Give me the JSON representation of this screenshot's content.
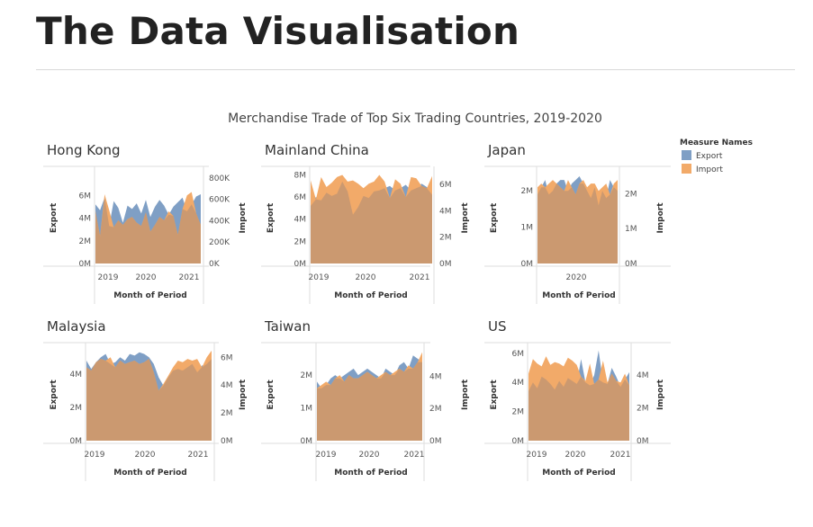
{
  "page": {
    "title": "The Data Visualisation"
  },
  "chart_title": "Merchandise Trade of Top Six Trading Countries, 2019-2020",
  "legend": {
    "title": "Measure Names",
    "items": [
      {
        "label": "Export",
        "color": "#7f9fc5"
      },
      {
        "label": "Import",
        "color": "#f2aa69"
      }
    ]
  },
  "colors": {
    "export": "#7f9fc5",
    "import": "#f2aa69",
    "overlap": "#cb9970"
  },
  "chart_data": [
    {
      "type": "area",
      "title": "Hong Kong",
      "xlabel": "Month of Period",
      "ylabel": "Export",
      "ylabel_right": "Import",
      "x_ticks": [
        "2019",
        "2020",
        "2021"
      ],
      "ylim": [
        0,
        8000000
      ],
      "y_ticks": [
        "0M",
        "2M",
        "4M",
        "6M"
      ],
      "ylim_right": [
        0,
        850000
      ],
      "y_ticks_right": [
        "0K",
        "200K",
        "400K",
        "600K",
        "800K"
      ],
      "series": [
        {
          "name": "Export",
          "axis": "left",
          "values": [
            5.2,
            4.7,
            5.8,
            3.3,
            5.5,
            4.9,
            3.6,
            5.1,
            4.8,
            5.3,
            4.4,
            5.6,
            4.1,
            5.0,
            5.6,
            5.1,
            4.3,
            5.0,
            5.4,
            5.8,
            4.6,
            5.2,
            5.9,
            6.1
          ]
        },
        {
          "name": "Import",
          "axis": "left",
          "values": [
            4.6,
            2.4,
            6.1,
            4.7,
            3.2,
            3.8,
            3.4,
            3.9,
            4.1,
            3.6,
            3.3,
            4.5,
            2.8,
            3.4,
            4.1,
            3.8,
            4.6,
            4.2,
            2.5,
            4.8,
            6.0,
            6.3,
            4.4,
            3.4
          ]
        }
      ]
    },
    {
      "type": "area",
      "title": "Mainland China",
      "xlabel": "Month of Period",
      "ylabel": "Export",
      "ylabel_right": "Import",
      "x_ticks": [
        "2019",
        "2020",
        "2021"
      ],
      "ylim": [
        0,
        8200000
      ],
      "y_ticks": [
        "0M",
        "2M",
        "4M",
        "6M",
        "8M"
      ],
      "ylim_right": [
        0,
        6900000
      ],
      "y_ticks_right": [
        "0M",
        "2M",
        "4M",
        "6M"
      ],
      "series": [
        {
          "name": "Export",
          "axis": "left",
          "values": [
            5.2,
            6.0,
            5.7,
            6.4,
            6.1,
            6.3,
            7.4,
            6.5,
            4.4,
            5.1,
            6.1,
            5.9,
            6.5,
            6.6,
            6.8,
            7.0,
            6.6,
            6.8,
            7.1,
            6.6,
            6.8,
            7.2,
            6.9,
            6.2
          ]
        },
        {
          "name": "Import",
          "axis": "left",
          "values": [
            7.5,
            5.8,
            7.8,
            6.9,
            7.3,
            7.8,
            8.0,
            7.4,
            7.5,
            7.2,
            6.8,
            7.2,
            7.4,
            8.0,
            7.4,
            5.9,
            7.6,
            7.2,
            6.0,
            7.8,
            7.7,
            7.0,
            6.8,
            7.9
          ]
        }
      ]
    },
    {
      "type": "area",
      "title": "Japan",
      "xlabel": "Month of Period",
      "ylabel": "Export",
      "ylabel_right": "Import",
      "x_ticks": [
        "2020"
      ],
      "ylim": [
        0,
        2500000
      ],
      "y_ticks": [
        "0M",
        "1M",
        "2M"
      ],
      "ylim_right": [
        0,
        2600000
      ],
      "y_ticks_right": [
        "0M",
        "1M",
        "2M"
      ],
      "series": [
        {
          "name": "Export",
          "axis": "left",
          "values": [
            1.9,
            2.1,
            2.3,
            1.9,
            2.0,
            2.2,
            2.3,
            2.3,
            2.0,
            2.2,
            2.3,
            2.4,
            2.2,
            2.0,
            1.8,
            2.1,
            1.6,
            2.0,
            1.8,
            2.3,
            2.1,
            2.0
          ]
        },
        {
          "name": "Import",
          "axis": "left",
          "values": [
            2.1,
            2.2,
            2.1,
            2.2,
            2.3,
            2.2,
            2.1,
            2.0,
            2.3,
            2.1,
            1.9,
            2.2,
            2.3,
            2.1,
            2.2,
            2.2,
            2.0,
            2.1,
            2.2,
            1.9,
            2.2,
            2.3
          ]
        }
      ]
    },
    {
      "type": "area",
      "title": "Malaysia",
      "xlabel": "Month of Period",
      "ylabel": "Export",
      "ylabel_right": "Import",
      "x_ticks": [
        "2019",
        "2020",
        "2021"
      ],
      "ylim": [
        0,
        5500000
      ],
      "y_ticks": [
        "0M",
        "2M",
        "4M"
      ],
      "ylim_right": [
        0,
        6600000
      ],
      "y_ticks_right": [
        "0M",
        "2M",
        "4M",
        "6M"
      ],
      "series": [
        {
          "name": "Export",
          "axis": "left",
          "values": [
            4.8,
            4.3,
            4.7,
            5.0,
            5.2,
            4.6,
            4.7,
            5.0,
            4.8,
            5.2,
            5.1,
            5.3,
            5.2,
            5.0,
            4.6,
            3.8,
            3.3,
            3.8,
            4.2,
            4.3,
            4.2,
            4.4,
            4.6,
            4.1,
            4.5,
            4.6,
            4.9
          ]
        },
        {
          "name": "Import",
          "axis": "left",
          "values": [
            4.4,
            4.2,
            4.7,
            4.9,
            4.8,
            5.0,
            4.4,
            4.8,
            4.6,
            4.7,
            4.8,
            4.6,
            4.7,
            4.9,
            4.1,
            3.0,
            3.4,
            3.9,
            4.4,
            4.8,
            4.7,
            4.9,
            4.8,
            4.9,
            4.4,
            5.0,
            5.4
          ]
        }
      ]
    },
    {
      "type": "area",
      "title": "Taiwan",
      "xlabel": "Month of Period",
      "ylabel": "Export",
      "ylabel_right": "Import",
      "x_ticks": [
        "2019",
        "2020",
        "2021"
      ],
      "ylim": [
        0,
        2800000
      ],
      "y_ticks": [
        "0M",
        "1M",
        "2M"
      ],
      "ylim_right": [
        0,
        5700000
      ],
      "y_ticks_right": [
        "0M",
        "2M",
        "4M"
      ],
      "series": [
        {
          "name": "Export",
          "axis": "left",
          "values": [
            1.8,
            1.6,
            1.7,
            1.9,
            2.0,
            1.9,
            2.0,
            2.1,
            2.2,
            2.0,
            2.1,
            2.2,
            2.1,
            2.0,
            1.9,
            2.2,
            2.1,
            2.0,
            2.3,
            2.4,
            2.2,
            2.6,
            2.5,
            2.4
          ]
        },
        {
          "name": "Import",
          "axis": "left",
          "values": [
            1.6,
            1.7,
            1.8,
            1.7,
            1.9,
            2.0,
            1.8,
            2.0,
            1.9,
            1.9,
            2.0,
            2.1,
            2.0,
            1.9,
            2.0,
            2.1,
            2.0,
            2.1,
            2.2,
            2.1,
            2.3,
            2.2,
            2.4,
            2.7
          ]
        }
      ]
    },
    {
      "type": "area",
      "title": "US",
      "xlabel": "Month of Period",
      "ylabel": "Export",
      "ylabel_right": "Import",
      "x_ticks": [
        "2019",
        "2020",
        "2021"
      ],
      "ylim": [
        0,
        6300000
      ],
      "y_ticks": [
        "0M",
        "2M",
        "4M",
        "6M"
      ],
      "ylim_right": [
        0,
        5600000
      ],
      "y_ticks_right": [
        "0M",
        "2M",
        "4M"
      ],
      "series": [
        {
          "name": "Export",
          "axis": "left",
          "values": [
            3.4,
            4.0,
            3.6,
            4.4,
            4.2,
            3.9,
            3.5,
            4.1,
            3.7,
            4.3,
            4.1,
            3.9,
            5.6,
            4.0,
            3.8,
            4.5,
            6.2,
            4.0,
            3.9,
            5.0,
            4.4,
            3.7,
            4.2,
            4.7
          ]
        },
        {
          "name": "Import",
          "axis": "left",
          "values": [
            4.6,
            5.6,
            5.3,
            5.1,
            5.8,
            5.2,
            5.4,
            5.3,
            5.1,
            5.7,
            5.5,
            5.2,
            4.4,
            4.1,
            5.3,
            3.9,
            4.2,
            5.5,
            4.0,
            4.6,
            4.1,
            4.0,
            4.6,
            3.8
          ]
        }
      ]
    }
  ]
}
